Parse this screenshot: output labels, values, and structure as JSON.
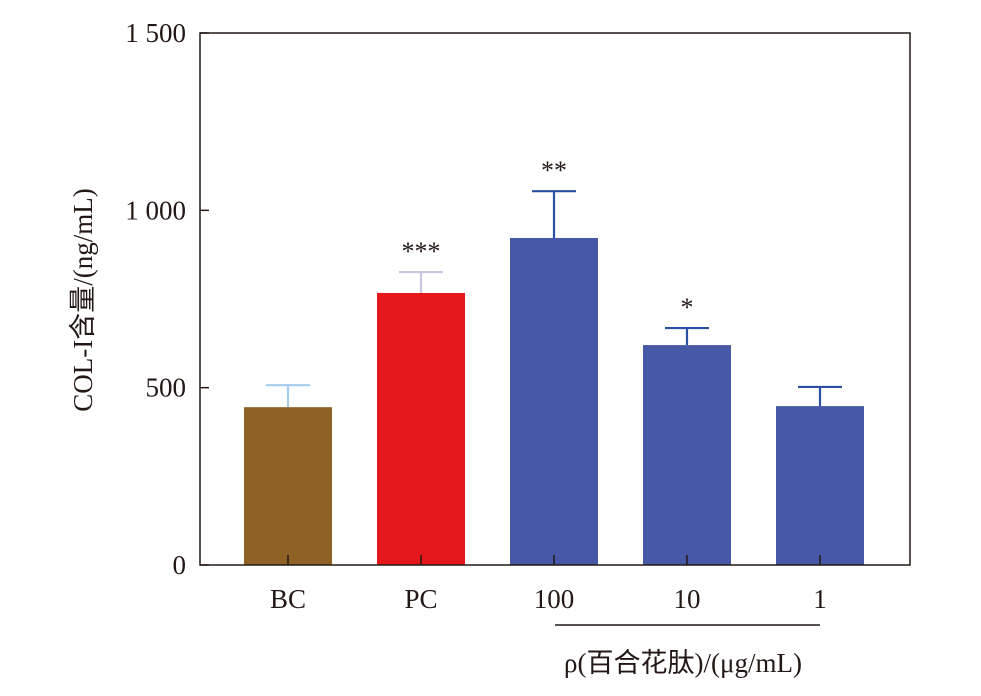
{
  "chart_data": {
    "type": "bar",
    "title": "",
    "xlabel": "ρ(百合花肽)/(μg/mL)",
    "ylabel": "COL-I含量/(ng/mL)",
    "ylim": [
      0,
      1500
    ],
    "yticks": [
      0,
      500,
      1000,
      1500
    ],
    "ytick_labels": [
      "0",
      "500",
      "1 000",
      "1 500"
    ],
    "categories": [
      "BC",
      "PC",
      "100",
      "10",
      "1"
    ],
    "values": [
      445,
      767,
      922,
      620,
      448
    ],
    "error_upper": [
      507,
      826,
      1054,
      668,
      502
    ],
    "significance": [
      "",
      "***",
      "**",
      "*",
      ""
    ],
    "bar_colors": [
      "#8E6125",
      "#E5161C",
      "#4759A6",
      "#4759A6",
      "#4759A6"
    ],
    "error_colors": [
      "#A6CCEB",
      "#C7C6E4",
      "#2A4FA3",
      "#2A4FA3",
      "#2A4FA3"
    ],
    "grouped_categories": [
      "100",
      "10",
      "1"
    ],
    "grid": false,
    "legend": "none"
  }
}
